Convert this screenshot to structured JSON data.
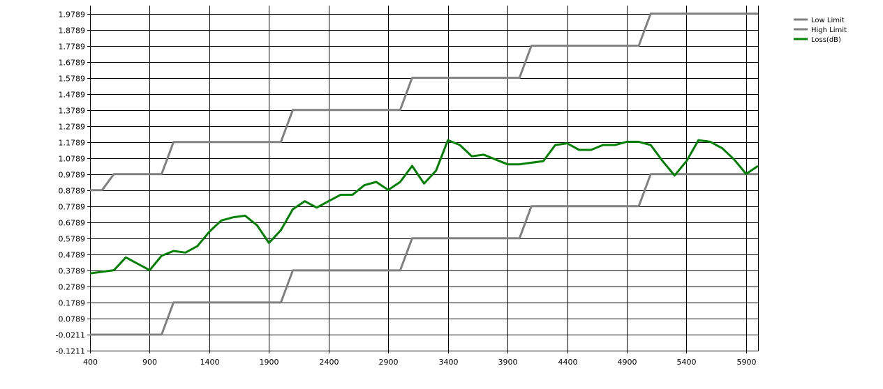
{
  "chart_data": {
    "type": "line",
    "xlim": [
      400,
      6000
    ],
    "ylim": [
      -0.1211,
      2.0289
    ],
    "x_ticks": [
      "400",
      "900",
      "1400",
      "1900",
      "2400",
      "2900",
      "3400",
      "3900",
      "4400",
      "4900",
      "5400",
      "5900"
    ],
    "x_tick_values": [
      400,
      900,
      1400,
      1900,
      2400,
      2900,
      3400,
      3900,
      4400,
      4900,
      5400,
      5900
    ],
    "y_ticks": [
      "-0.1211",
      "-0.0211",
      "0.0789",
      "0.1789",
      "0.2789",
      "0.3789",
      "0.4789",
      "0.5789",
      "0.6789",
      "0.7789",
      "0.8789",
      "0.9789",
      "1.0789",
      "1.1789",
      "1.2789",
      "1.3789",
      "1.4789",
      "1.5789",
      "1.6789",
      "1.7789",
      "1.8789",
      "1.9789"
    ],
    "y_tick_values": [
      -0.1211,
      -0.0211,
      0.0789,
      0.1789,
      0.2789,
      0.3789,
      0.4789,
      0.5789,
      0.6789,
      0.7789,
      0.8789,
      0.9789,
      1.0789,
      1.1789,
      1.2789,
      1.3789,
      1.4789,
      1.5789,
      1.6789,
      1.7789,
      1.8789,
      1.9789
    ],
    "grid": true,
    "legend_position": "top-right",
    "series": [
      {
        "name": "Low Limit",
        "color": "#808080",
        "x": [
          400,
          1000,
          1100,
          2000,
          2100,
          3000,
          3100,
          4000,
          4100,
          5000,
          5100,
          6000
        ],
        "y": [
          -0.0211,
          -0.0211,
          0.1789,
          0.1789,
          0.3789,
          0.3789,
          0.5789,
          0.5789,
          0.7789,
          0.7789,
          0.9789,
          0.9789
        ]
      },
      {
        "name": "High Limit",
        "color": "#808080",
        "x": [
          400,
          500,
          600,
          1000,
          1100,
          2000,
          2100,
          3000,
          3100,
          4000,
          4100,
          5000,
          5100,
          6000
        ],
        "y": [
          0.8789,
          0.8789,
          0.9789,
          0.9789,
          1.1789,
          1.1789,
          1.3789,
          1.3789,
          1.5789,
          1.5789,
          1.7789,
          1.7789,
          1.9789,
          1.9789
        ]
      },
      {
        "name": "Loss(dB)",
        "color": "#008000",
        "x": [
          400,
          500,
          600,
          700,
          800,
          900,
          1000,
          1100,
          1200,
          1300,
          1400,
          1500,
          1600,
          1700,
          1800,
          1900,
          2000,
          2100,
          2200,
          2300,
          2400,
          2500,
          2600,
          2700,
          2800,
          2900,
          3000,
          3100,
          3200,
          3300,
          3400,
          3500,
          3600,
          3700,
          3800,
          3900,
          4000,
          4100,
          4200,
          4300,
          4400,
          4500,
          4600,
          4700,
          4800,
          4900,
          5000,
          5100,
          5200,
          5300,
          5400,
          5500,
          5600,
          5700,
          5800,
          5900,
          6000
        ],
        "y": [
          0.36,
          0.37,
          0.38,
          0.46,
          0.42,
          0.38,
          0.47,
          0.5,
          0.49,
          0.53,
          0.62,
          0.69,
          0.71,
          0.72,
          0.66,
          0.55,
          0.63,
          0.76,
          0.81,
          0.77,
          0.81,
          0.85,
          0.85,
          0.91,
          0.93,
          0.88,
          0.93,
          1.03,
          0.92,
          1.0,
          1.19,
          1.16,
          1.09,
          1.1,
          1.07,
          1.04,
          1.04,
          1.05,
          1.06,
          1.16,
          1.17,
          1.13,
          1.13,
          1.16,
          1.16,
          1.18,
          1.18,
          1.16,
          1.06,
          0.97,
          1.06,
          1.19,
          1.18,
          1.14,
          1.07,
          0.98,
          1.03
        ]
      }
    ]
  }
}
